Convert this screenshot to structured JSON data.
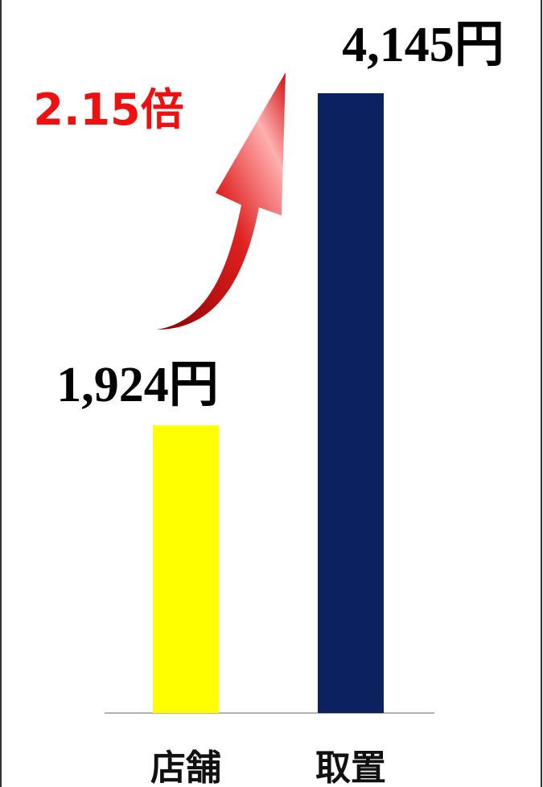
{
  "chart_data": {
    "type": "bar",
    "categories": [
      "店舗",
      "取置"
    ],
    "values": [
      1924,
      4145
    ],
    "value_labels": [
      "1,924円",
      "4,145円"
    ],
    "colors": [
      "#ffff00",
      "#0b2160"
    ],
    "annotation": "2.15倍"
  }
}
